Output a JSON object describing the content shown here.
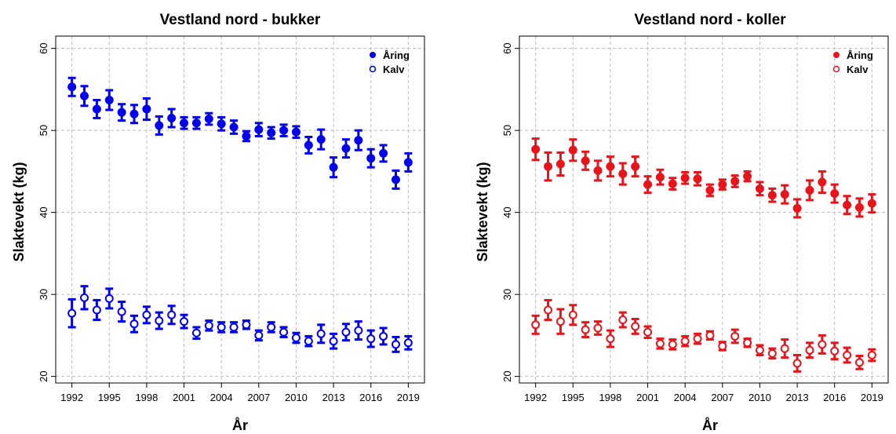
{
  "chart_data": [
    {
      "type": "scatter",
      "title": "Vestland nord - bukker",
      "xlabel": "År",
      "ylabel": "Slaktevekt (kg)",
      "xlim": [
        1990.7,
        2020.3
      ],
      "ylim": [
        19.2,
        61.5
      ],
      "xticks": [
        1992,
        1995,
        1998,
        2001,
        2004,
        2007,
        2010,
        2013,
        2016,
        2019
      ],
      "yticks": [
        20,
        30,
        40,
        50,
        60
      ],
      "grid": true,
      "legend_position": "top-right",
      "color": "#0000ee",
      "x": [
        1992,
        1993,
        1994,
        1995,
        1996,
        1997,
        1998,
        1999,
        2000,
        2001,
        2002,
        2003,
        2004,
        2005,
        2006,
        2007,
        2008,
        2009,
        2010,
        2011,
        2012,
        2013,
        2014,
        2015,
        2016,
        2017,
        2018,
        2019
      ],
      "series": [
        {
          "name": "Åring",
          "marker": "filled",
          "values": [
            55.3,
            54.2,
            52.6,
            53.7,
            52.2,
            52.0,
            52.6,
            50.6,
            51.5,
            50.9,
            50.9,
            51.4,
            50.8,
            50.4,
            49.3,
            50.1,
            49.7,
            50.0,
            49.8,
            48.2,
            48.9,
            45.5,
            47.8,
            48.8,
            46.6,
            47.2,
            44.0,
            46.1
          ],
          "err": [
            1.1,
            1.2,
            1.1,
            1.2,
            1.0,
            1.1,
            1.3,
            1.1,
            1.1,
            0.7,
            0.7,
            0.7,
            0.8,
            0.8,
            0.6,
            0.8,
            0.7,
            0.7,
            0.7,
            1.0,
            1.2,
            1.2,
            1.1,
            1.2,
            1.1,
            1.0,
            1.1,
            1.1
          ]
        },
        {
          "name": "Kalv",
          "marker": "open",
          "values": [
            27.7,
            29.6,
            28.1,
            29.5,
            27.9,
            26.4,
            27.5,
            26.8,
            27.5,
            26.7,
            25.3,
            26.2,
            26.0,
            26.0,
            26.3,
            25.0,
            26.0,
            25.4,
            24.7,
            24.3,
            25.2,
            24.3,
            25.4,
            25.6,
            24.6,
            24.9,
            23.9,
            24.1
          ],
          "err": [
            1.7,
            1.4,
            1.2,
            1.2,
            1.2,
            1.0,
            1.0,
            1.0,
            1.1,
            0.8,
            0.7,
            0.6,
            0.6,
            0.6,
            0.5,
            0.6,
            0.6,
            0.6,
            0.6,
            0.6,
            1.1,
            0.9,
            1.0,
            1.1,
            1.0,
            1.0,
            0.9,
            0.8
          ]
        }
      ]
    },
    {
      "type": "scatter",
      "title": "Vestland nord - koller",
      "xlabel": "År",
      "ylabel": "Slaktevekt (kg)",
      "xlim": [
        1990.7,
        2020.3
      ],
      "ylim": [
        19.2,
        61.5
      ],
      "xticks": [
        1992,
        1995,
        1998,
        2001,
        2004,
        2007,
        2010,
        2013,
        2016,
        2019
      ],
      "yticks": [
        20,
        30,
        40,
        50,
        60
      ],
      "grid": true,
      "legend_position": "top-right",
      "color": "#e8141b",
      "x": [
        1992,
        1993,
        1994,
        1995,
        1996,
        1997,
        1998,
        1999,
        2000,
        2001,
        2002,
        2003,
        2004,
        2005,
        2006,
        2007,
        2008,
        2009,
        2010,
        2011,
        2012,
        2013,
        2014,
        2015,
        2016,
        2017,
        2018,
        2019
      ],
      "series": [
        {
          "name": "Åring",
          "marker": "filled",
          "values": [
            47.7,
            45.6,
            45.9,
            47.6,
            46.3,
            45.1,
            45.6,
            44.7,
            45.6,
            43.4,
            44.3,
            43.5,
            44.2,
            44.1,
            42.7,
            43.4,
            43.8,
            44.4,
            42.9,
            42.1,
            42.2,
            40.5,
            42.7,
            43.7,
            42.3,
            40.9,
            40.6,
            41.1
          ],
          "err": [
            1.3,
            1.7,
            1.4,
            1.3,
            1.1,
            1.2,
            1.2,
            1.3,
            1.2,
            1.0,
            0.9,
            0.7,
            0.7,
            0.8,
            0.7,
            0.6,
            0.7,
            0.6,
            0.8,
            0.8,
            1.1,
            1.1,
            1.2,
            1.3,
            1.1,
            1.1,
            1.1,
            1.1
          ]
        },
        {
          "name": "Kalv",
          "marker": "open",
          "values": [
            26.3,
            28.1,
            26.7,
            27.5,
            25.7,
            25.9,
            24.6,
            26.9,
            26.1,
            25.4,
            24.0,
            23.9,
            24.3,
            24.6,
            25.0,
            23.7,
            24.9,
            24.1,
            23.2,
            22.8,
            23.4,
            21.6,
            23.2,
            23.9,
            23.1,
            22.6,
            21.7,
            22.6
          ],
          "err": [
            1.1,
            1.2,
            1.5,
            1.2,
            0.9,
            0.8,
            1.0,
            0.9,
            0.9,
            0.7,
            0.6,
            0.6,
            0.6,
            0.6,
            0.5,
            0.5,
            0.8,
            0.5,
            0.6,
            0.6,
            1.1,
            1.0,
            0.9,
            1.1,
            1.0,
            0.9,
            0.8,
            0.7
          ]
        }
      ]
    }
  ]
}
